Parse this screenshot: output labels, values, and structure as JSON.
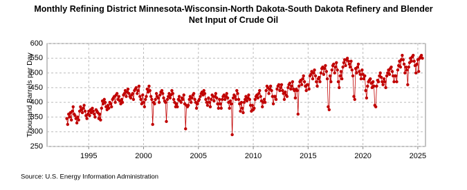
{
  "chart_data": {
    "type": "line",
    "title": "Monthly Refining District Minnesota-Wisconsin-North Dakota-South Dakota Refinery and Blender Net Input of Crude Oil",
    "y_label": "Thousand Barrels per Day",
    "source": "Source: U.S. Energy Information Administration",
    "color": "#c00000",
    "grid": true,
    "xlim": [
      1991.2,
      2025.7
    ],
    "xticks": [
      1995,
      2000,
      2005,
      2010,
      2015,
      2020,
      2025
    ],
    "ylim": [
      250,
      600
    ],
    "yticks": [
      250,
      300,
      350,
      400,
      450,
      500,
      550,
      600
    ],
    "x": [
      1993.0,
      1993.08,
      1993.17,
      1993.25,
      1993.33,
      1993.42,
      1993.5,
      1993.58,
      1993.67,
      1993.75,
      1993.83,
      1993.92,
      1994.0,
      1994.08,
      1994.17,
      1994.25,
      1994.33,
      1994.42,
      1994.5,
      1994.58,
      1994.67,
      1994.75,
      1994.83,
      1994.92,
      1995.0,
      1995.08,
      1995.17,
      1995.25,
      1995.33,
      1995.42,
      1995.5,
      1995.58,
      1995.67,
      1995.75,
      1995.83,
      1995.92,
      1996.0,
      1996.08,
      1996.17,
      1996.25,
      1996.33,
      1996.42,
      1996.5,
      1996.58,
      1996.67,
      1996.75,
      1996.83,
      1996.92,
      1997.0,
      1997.08,
      1997.17,
      1997.25,
      1997.33,
      1997.42,
      1997.5,
      1997.58,
      1997.67,
      1997.75,
      1997.83,
      1997.92,
      1998.0,
      1998.08,
      1998.17,
      1998.25,
      1998.33,
      1998.42,
      1998.5,
      1998.58,
      1998.67,
      1998.75,
      1998.83,
      1998.92,
      1999.0,
      1999.08,
      1999.17,
      1999.25,
      1999.33,
      1999.42,
      1999.5,
      1999.58,
      1999.67,
      1999.75,
      1999.83,
      1999.92,
      2000.0,
      2000.08,
      2000.17,
      2000.25,
      2000.33,
      2000.42,
      2000.5,
      2000.58,
      2000.67,
      2000.75,
      2000.83,
      2000.92,
      2001.0,
      2001.08,
      2001.17,
      2001.25,
      2001.33,
      2001.42,
      2001.5,
      2001.58,
      2001.67,
      2001.75,
      2001.83,
      2001.92,
      2002.0,
      2002.08,
      2002.17,
      2002.25,
      2002.33,
      2002.42,
      2002.5,
      2002.58,
      2002.67,
      2002.75,
      2002.83,
      2002.92,
      2003.0,
      2003.08,
      2003.17,
      2003.25,
      2003.33,
      2003.42,
      2003.5,
      2003.58,
      2003.67,
      2003.75,
      2003.83,
      2003.92,
      2004.0,
      2004.08,
      2004.17,
      2004.25,
      2004.33,
      2004.42,
      2004.5,
      2004.58,
      2004.67,
      2004.75,
      2004.83,
      2004.92,
      2005.0,
      2005.08,
      2005.17,
      2005.25,
      2005.33,
      2005.42,
      2005.5,
      2005.58,
      2005.67,
      2005.75,
      2005.83,
      2005.92,
      2006.0,
      2006.08,
      2006.17,
      2006.25,
      2006.33,
      2006.42,
      2006.5,
      2006.58,
      2006.67,
      2006.75,
      2006.83,
      2006.92,
      2007.0,
      2007.08,
      2007.17,
      2007.25,
      2007.33,
      2007.42,
      2007.5,
      2007.58,
      2007.67,
      2007.75,
      2007.83,
      2007.92,
      2008.0,
      2008.08,
      2008.17,
      2008.25,
      2008.33,
      2008.42,
      2008.5,
      2008.58,
      2008.67,
      2008.75,
      2008.83,
      2008.92,
      2009.0,
      2009.08,
      2009.17,
      2009.25,
      2009.33,
      2009.42,
      2009.5,
      2009.58,
      2009.67,
      2009.75,
      2009.83,
      2009.92,
      2010.0,
      2010.08,
      2010.17,
      2010.25,
      2010.33,
      2010.42,
      2010.5,
      2010.58,
      2010.67,
      2010.75,
      2010.83,
      2010.92,
      2011.0,
      2011.08,
      2011.17,
      2011.25,
      2011.33,
      2011.42,
      2011.5,
      2011.58,
      2011.67,
      2011.75,
      2011.83,
      2011.92,
      2012.0,
      2012.08,
      2012.17,
      2012.25,
      2012.33,
      2012.42,
      2012.5,
      2012.58,
      2012.67,
      2012.75,
      2012.83,
      2012.92,
      2013.0,
      2013.08,
      2013.17,
      2013.25,
      2013.33,
      2013.42,
      2013.5,
      2013.58,
      2013.67,
      2013.75,
      2013.83,
      2013.92,
      2014.0,
      2014.08,
      2014.17,
      2014.25,
      2014.33,
      2014.42,
      2014.5,
      2014.58,
      2014.67,
      2014.75,
      2014.83,
      2014.92,
      2015.0,
      2015.08,
      2015.17,
      2015.25,
      2015.33,
      2015.42,
      2015.5,
      2015.58,
      2015.67,
      2015.75,
      2015.83,
      2015.92,
      2016.0,
      2016.08,
      2016.17,
      2016.25,
      2016.33,
      2016.42,
      2016.5,
      2016.58,
      2016.67,
      2016.75,
      2016.83,
      2016.92,
      2017.0,
      2017.08,
      2017.17,
      2017.25,
      2017.33,
      2017.42,
      2017.5,
      2017.58,
      2017.67,
      2017.75,
      2017.83,
      2017.92,
      2018.0,
      2018.08,
      2018.17,
      2018.25,
      2018.33,
      2018.42,
      2018.5,
      2018.58,
      2018.67,
      2018.75,
      2018.83,
      2018.92,
      2019.0,
      2019.08,
      2019.17,
      2019.25,
      2019.33,
      2019.42,
      2019.5,
      2019.58,
      2019.67,
      2019.75,
      2019.83,
      2019.92,
      2020.0,
      2020.08,
      2020.17,
      2020.25,
      2020.33,
      2020.42,
      2020.5,
      2020.58,
      2020.67,
      2020.75,
      2020.83,
      2020.92,
      2021.0,
      2021.08,
      2021.17,
      2021.25,
      2021.33,
      2021.42,
      2021.5,
      2021.58,
      2021.67,
      2021.75,
      2021.83,
      2021.92,
      2022.0,
      2022.08,
      2022.17,
      2022.25,
      2022.33,
      2022.42,
      2022.5,
      2022.58,
      2022.67,
      2022.75,
      2022.83,
      2022.92,
      2023.0,
      2023.08,
      2023.17,
      2023.25,
      2023.33,
      2023.42,
      2023.5,
      2023.58,
      2023.67,
      2023.75,
      2023.83,
      2023.92,
      2024.0,
      2024.08,
      2024.17,
      2024.25,
      2024.33,
      2024.42,
      2024.5,
      2024.58,
      2024.67,
      2024.75,
      2024.83,
      2024.92,
      2025.0,
      2025.08,
      2025.17,
      2025.25,
      2025.33,
      2025.42
    ],
    "values": [
      345,
      325,
      360,
      350,
      365,
      340,
      370,
      385,
      360,
      355,
      345,
      330,
      350,
      340,
      370,
      385,
      375,
      365,
      380,
      390,
      370,
      355,
      345,
      360,
      370,
      355,
      375,
      365,
      380,
      370,
      360,
      350,
      375,
      370,
      365,
      345,
      360,
      340,
      380,
      405,
      395,
      410,
      400,
      385,
      375,
      390,
      380,
      400,
      395,
      385,
      410,
      415,
      420,
      400,
      425,
      430,
      410,
      420,
      405,
      395,
      410,
      400,
      425,
      430,
      440,
      420,
      435,
      445,
      430,
      420,
      415,
      425,
      430,
      410,
      440,
      445,
      450,
      430,
      440,
      455,
      420,
      410,
      395,
      425,
      400,
      385,
      410,
      420,
      445,
      435,
      455,
      440,
      420,
      410,
      325,
      400,
      395,
      410,
      430,
      420,
      415,
      400,
      425,
      435,
      440,
      430,
      415,
      405,
      400,
      335,
      410,
      420,
      430,
      415,
      425,
      440,
      430,
      410,
      400,
      385,
      395,
      385,
      410,
      420,
      405,
      400,
      415,
      410,
      425,
      395,
      310,
      390,
      385,
      390,
      410,
      420,
      400,
      415,
      425,
      430,
      410,
      400,
      380,
      395,
      405,
      410,
      420,
      430,
      435,
      425,
      440,
      430,
      410,
      400,
      390,
      415,
      400,
      385,
      410,
      425,
      420,
      405,
      420,
      430,
      415,
      395,
      380,
      410,
      395,
      380,
      410,
      420,
      425,
      410,
      420,
      430,
      415,
      400,
      380,
      405,
      395,
      290,
      415,
      425,
      420,
      410,
      440,
      430,
      410,
      395,
      370,
      400,
      380,
      365,
      400,
      410,
      420,
      405,
      415,
      425,
      410,
      390,
      370,
      390,
      375,
      380,
      410,
      420,
      425,
      415,
      430,
      440,
      420,
      405,
      385,
      400,
      410,
      400,
      440,
      455,
      450,
      430,
      445,
      455,
      440,
      420,
      395,
      420,
      420,
      410,
      445,
      455,
      460,
      440,
      450,
      460,
      440,
      430,
      410,
      435,
      425,
      420,
      450,
      460,
      465,
      445,
      455,
      470,
      445,
      440,
      415,
      445,
      440,
      360,
      455,
      470,
      475,
      460,
      480,
      490,
      470,
      455,
      440,
      460,
      460,
      445,
      490,
      495,
      505,
      480,
      500,
      510,
      490,
      470,
      455,
      480,
      485,
      470,
      500,
      515,
      520,
      495,
      515,
      525,
      505,
      480,
      385,
      375,
      490,
      470,
      510,
      525,
      530,
      500,
      520,
      535,
      510,
      470,
      450,
      490,
      505,
      480,
      520,
      535,
      545,
      525,
      545,
      550,
      540,
      530,
      520,
      540,
      510,
      490,
      420,
      410,
      515,
      500,
      520,
      530,
      505,
      495,
      480,
      510,
      495,
      480,
      490,
      440,
      415,
      455,
      470,
      475,
      480,
      465,
      450,
      470,
      455,
      390,
      385,
      455,
      475,
      470,
      490,
      500,
      485,
      470,
      460,
      480,
      470,
      450,
      490,
      500,
      510,
      495,
      515,
      520,
      505,
      490,
      470,
      490,
      490,
      470,
      510,
      525,
      540,
      520,
      545,
      560,
      545,
      530,
      500,
      520,
      510,
      460,
      520,
      535,
      550,
      540,
      555,
      560,
      540,
      525,
      500,
      530,
      545,
      505,
      550,
      555,
      560,
      550
    ]
  }
}
